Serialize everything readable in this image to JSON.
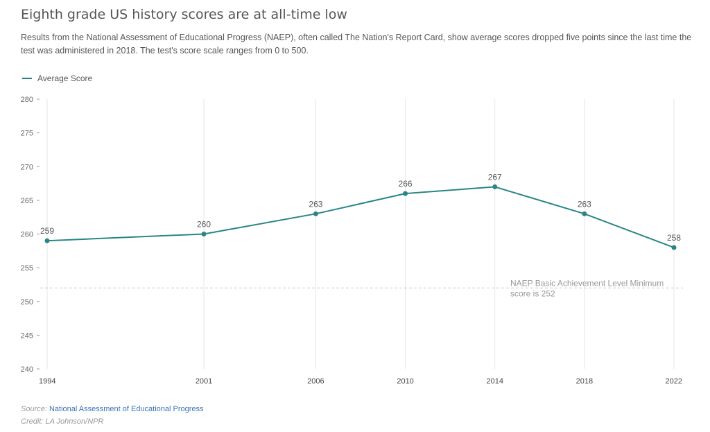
{
  "title": "Eighth grade US history scores are at all-time low",
  "subtitle": "Results from the National Assessment of Educational Progress (NAEP), often called The Nation's Report Card, show average scores dropped five points since the last time the test was administered in 2018. The test's score scale ranges from 0 to 500.",
  "legend": {
    "series_label": "Average Score"
  },
  "colors": {
    "line": "#2a8585",
    "grid": "#e6e6e6",
    "axis_text": "#666666",
    "reference": "#cccccc",
    "annotation": "#999999"
  },
  "chart_data": {
    "type": "line",
    "categories": [
      "1994",
      "2001",
      "2006",
      "2010",
      "2014",
      "2018",
      "2022"
    ],
    "series": [
      {
        "name": "Average Score",
        "values": [
          259,
          260,
          263,
          266,
          267,
          263,
          258
        ]
      }
    ],
    "ylim": [
      240,
      280
    ],
    "yticks": [
      240,
      245,
      250,
      255,
      260,
      265,
      270,
      275,
      280
    ],
    "grid": "vertical",
    "legend": "top-left",
    "reference_line": {
      "value": 252,
      "label_lines": [
        "NAEP Basic Achievement Level Minimum",
        "score is 252"
      ]
    }
  },
  "footer": {
    "source_label": "Source:",
    "source_text": "National Assessment of Educational Progress",
    "credit": "Credit: LA Johnson/NPR"
  }
}
